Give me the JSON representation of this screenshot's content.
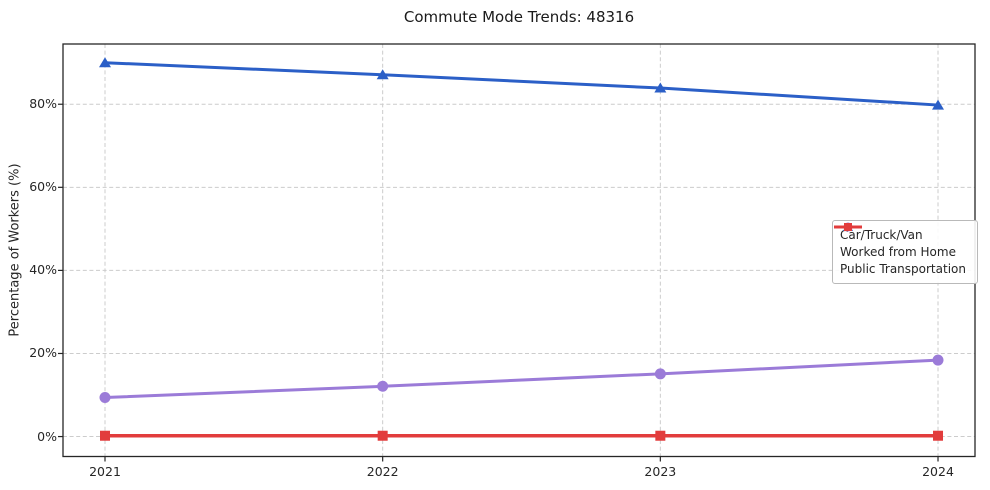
{
  "title": "Commute Mode Trends: 48316",
  "chart_data": {
    "type": "line",
    "title": "Commute Mode Trends: 48316",
    "categories": [
      "2021",
      "2022",
      "2023",
      "2024"
    ],
    "series": [
      {
        "name": "Car/Truck/Van",
        "color": "#2b5fc7",
        "marker": "triangle",
        "line_width": 3,
        "values": [
          90.0,
          87.1,
          83.9,
          79.8
        ]
      },
      {
        "name": "Worked from Home",
        "color": "#9b7bd8",
        "marker": "circle",
        "line_width": 3,
        "values": [
          9.4,
          12.1,
          15.1,
          18.4
        ]
      },
      {
        "name": "Public Transportation",
        "color": "#e23c3c",
        "marker": "square",
        "line_width": 3.5,
        "values": [
          0.2,
          0.2,
          0.2,
          0.2
        ]
      }
    ],
    "xlabel": "",
    "ylabel": "Percentage of Workers (%)",
    "y_ticks": {
      "values": [
        0,
        20,
        40,
        60,
        80
      ],
      "labels": [
        "0%",
        "20%",
        "40%",
        "60%",
        "80%"
      ]
    },
    "ylim": [
      -4.8,
      94.5
    ],
    "grid": true,
    "grid_style": "dashed",
    "grid_color": "#cccccc",
    "frame_color": "#262626",
    "legend_position": "center-right"
  }
}
